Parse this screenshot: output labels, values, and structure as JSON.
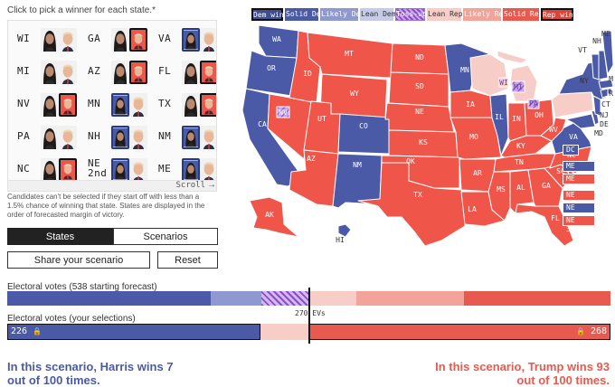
{
  "instructions": "Click to pick a winner for each state.*",
  "picker": {
    "rows": [
      [
        {
          "code": "WI",
          "winner": "none"
        },
        {
          "code": "GA",
          "winner": "rep"
        },
        {
          "code": "VA",
          "winner": "dem"
        }
      ],
      [
        {
          "code": "MI",
          "winner": "none"
        },
        {
          "code": "AZ",
          "winner": "rep"
        },
        {
          "code": "FL",
          "winner": "rep"
        }
      ],
      [
        {
          "code": "NV",
          "winner": "rep"
        },
        {
          "code": "MN",
          "winner": "dem"
        },
        {
          "code": "TX",
          "winner": "rep"
        }
      ],
      [
        {
          "code": "PA",
          "winner": "none"
        },
        {
          "code": "NH",
          "winner": "dem"
        },
        {
          "code": "NM",
          "winner": "dem"
        }
      ],
      [
        {
          "code": "NC",
          "winner": "rep"
        },
        {
          "code": "NE\n2nd",
          "winner": "dem"
        },
        {
          "code": "ME",
          "winner": "dem"
        }
      ]
    ],
    "scroll_label": "Scroll",
    "scroll_arrow": "→"
  },
  "note": "Candidates can't be selected if they start off with less than a 1.5% chance of winning that state. States are displayed in the order of forecasted margin of victory.",
  "tabs": {
    "states": "States",
    "scenarios": "Scenarios",
    "active": "states"
  },
  "actions": {
    "share": "Share your scenario",
    "reset": "Reset"
  },
  "legend": [
    {
      "label": "Dem win",
      "bg": "#3d4d8f",
      "fg": "#ffffff",
      "border": "#111111"
    },
    {
      "label": "Solid Dem",
      "bg": "#4a5aa6",
      "fg": "#ffffff",
      "border": "#4a5aa6"
    },
    {
      "label": "Likely Dem",
      "bg": "#8f99d0",
      "fg": "#ffffff",
      "border": "#8f99d0"
    },
    {
      "label": "Lean Dem",
      "bg": "#c7cbe8",
      "fg": "#333333",
      "border": "#c7cbe8"
    },
    {
      "label": "Toss-up",
      "bg": "hatch",
      "fg": "#ffffff",
      "border": "#a66bd4"
    },
    {
      "label": "Lean Rep",
      "bg": "#f7cdc8",
      "fg": "#333333",
      "border": "#f7cdc8"
    },
    {
      "label": "Likely Rep",
      "bg": "#f2a39a",
      "fg": "#ffffff",
      "border": "#f2a39a"
    },
    {
      "label": "Solid Rep",
      "bg": "#e85a4f",
      "fg": "#ffffff",
      "border": "#e85a4f"
    },
    {
      "label": "Rep win",
      "bg": "#e04236",
      "fg": "#ffffff",
      "border": "#111111"
    }
  ],
  "colors": {
    "dem_win": "#4a5aa6",
    "rep_win": "#f0554a",
    "lean_dem": "#d3d6ee",
    "lean_rep": "#f7cdc8",
    "likely_rep": "#f2a39a",
    "tossup": "#a66bd4"
  },
  "map_labels": {
    "WA": "WA",
    "OR": "OR",
    "CA": "CA",
    "NV": "NV",
    "ID": "ID",
    "MT": "MT",
    "WY": "WY",
    "UT": "UT",
    "AZ": "AZ",
    "CO": "CO",
    "NM": "NM",
    "ND": "ND",
    "SD": "SD",
    "NE": "NE",
    "KS": "KS",
    "OK": "OK",
    "TX": "TX",
    "MN": "MN",
    "IA": "IA",
    "MO": "MO",
    "AR": "AR",
    "LA": "LA",
    "WI": "WI",
    "IL": "IL",
    "MI": "MI",
    "IN": "IN",
    "OH": "OH",
    "KY": "KY",
    "TN": "TN",
    "MS": "MS",
    "AL": "AL",
    "GA": "GA",
    "FL": "FL",
    "SC": "SC",
    "NC": "NC",
    "VA": "VA",
    "WV": "WV",
    "PA": "PA",
    "NY": "NY",
    "VT": "VT",
    "NH": "NH",
    "ME": "ME",
    "MA": "MA",
    "RI": "RI",
    "CT": "CT",
    "NJ": "NJ",
    "DE": "DE",
    "MD": "MD",
    "AK": "AK",
    "HI": "HI"
  },
  "side_chips": [
    {
      "label": "DC",
      "winner": "dem"
    },
    {
      "label": "ME 1st",
      "winner": "dem"
    },
    {
      "label": "ME 2nd",
      "winner": "rep"
    },
    {
      "label": "NE 1st",
      "winner": "rep"
    },
    {
      "label": "NE 2nd",
      "winner": "dem"
    },
    {
      "label": "NE 3rd",
      "winner": "rep"
    }
  ],
  "ev_forecast": {
    "label": "Electoral votes (538 starting forecast)",
    "segments": [
      {
        "category": "Solid Dem",
        "fraction": 0.3367,
        "color": "#4a5aa6"
      },
      {
        "category": "Likely Dem",
        "fraction": 0.0835,
        "color": "#8f99d0"
      },
      {
        "category": "Toss-up",
        "fraction": 0.0801,
        "color": "hatch"
      },
      {
        "category": "Lean Rep",
        "fraction": 0.0775,
        "color": "#f7cdc8"
      },
      {
        "category": "Likely Rep",
        "fraction": 0.1789,
        "color": "#f2a39a"
      },
      {
        "category": "Solid Rep",
        "fraction": 0.2433,
        "color": "#e85a4f"
      }
    ]
  },
  "ev_selection": {
    "label": "Electoral votes (your selections)",
    "dem_value": "226",
    "rep_value": "268",
    "dem_fraction": 0.42,
    "lean_rep_fraction": 0.08,
    "rep_fraction": 0.5
  },
  "threshold_label": "270 EVs",
  "lock_icon": "🔒",
  "outcome": {
    "harris": "In this scenario, Harris wins 7 out of 100 times.",
    "trump": "In this scenario, Trump wins 93 out of 100 times."
  }
}
